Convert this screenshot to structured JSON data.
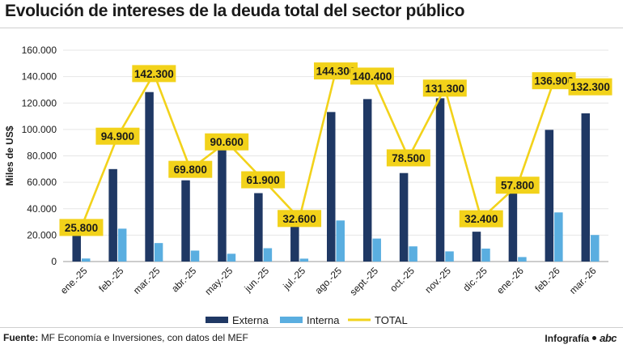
{
  "header": {
    "title": "Evolución de intereses de la deuda total del sector público"
  },
  "footer": {
    "source_label": "Fuente:",
    "source_text": "MF Economía e Inversiones, con datos del MEF",
    "credit": "Infografía",
    "logo_text": "abc"
  },
  "colors": {
    "externa": "#1f3864",
    "interna": "#5aaee0",
    "total": "#f2d21a",
    "label_bg": "#f2d21a"
  },
  "chart_data": {
    "type": "bar",
    "ylabel": "Miles de US$",
    "ylim": [
      0,
      160000
    ],
    "yticks": [
      0,
      20000,
      40000,
      60000,
      80000,
      100000,
      120000,
      140000,
      160000
    ],
    "ytick_labels": [
      "0",
      "20.000",
      "40.000",
      "60.000",
      "80.000",
      "100.000",
      "120.000",
      "140.000",
      "160.000"
    ],
    "grid": true,
    "legend_position": "bottom",
    "categories": [
      "ene.-25",
      "feb.-25",
      "mar.-25",
      "abr.-25",
      "may.-25",
      "jun.-25",
      "jul.-25",
      "ago.-25",
      "sept.-25",
      "oct.-25",
      "nov.-25",
      "dic.-25",
      "ene.-26",
      "feb.-26",
      "mar.-26"
    ],
    "series": [
      {
        "name": "Externa",
        "kind": "bar",
        "values": [
          23500,
          70000,
          128300,
          61500,
          84700,
          51800,
          30400,
          113200,
          123000,
          67000,
          123600,
          22600,
          54400,
          99700,
          112200
        ]
      },
      {
        "name": "Interna",
        "kind": "bar",
        "values": [
          2300,
          24900,
          14000,
          8300,
          5900,
          10100,
          2200,
          31100,
          17400,
          11500,
          7700,
          9800,
          3400,
          37200,
          20100
        ]
      },
      {
        "name": "TOTAL",
        "kind": "line",
        "values": [
          25800,
          94900,
          142300,
          69800,
          90600,
          61900,
          32600,
          144300,
          140400,
          78500,
          131300,
          32400,
          57800,
          136900,
          132300
        ],
        "labels": [
          "25.800",
          "94.900",
          "142.300",
          "69.800",
          "90.600",
          "61.900",
          "32.600",
          "144.300",
          "140.400",
          "78.500",
          "131.300",
          "32.400",
          "57.800",
          "136.900",
          "132.300"
        ]
      }
    ]
  }
}
